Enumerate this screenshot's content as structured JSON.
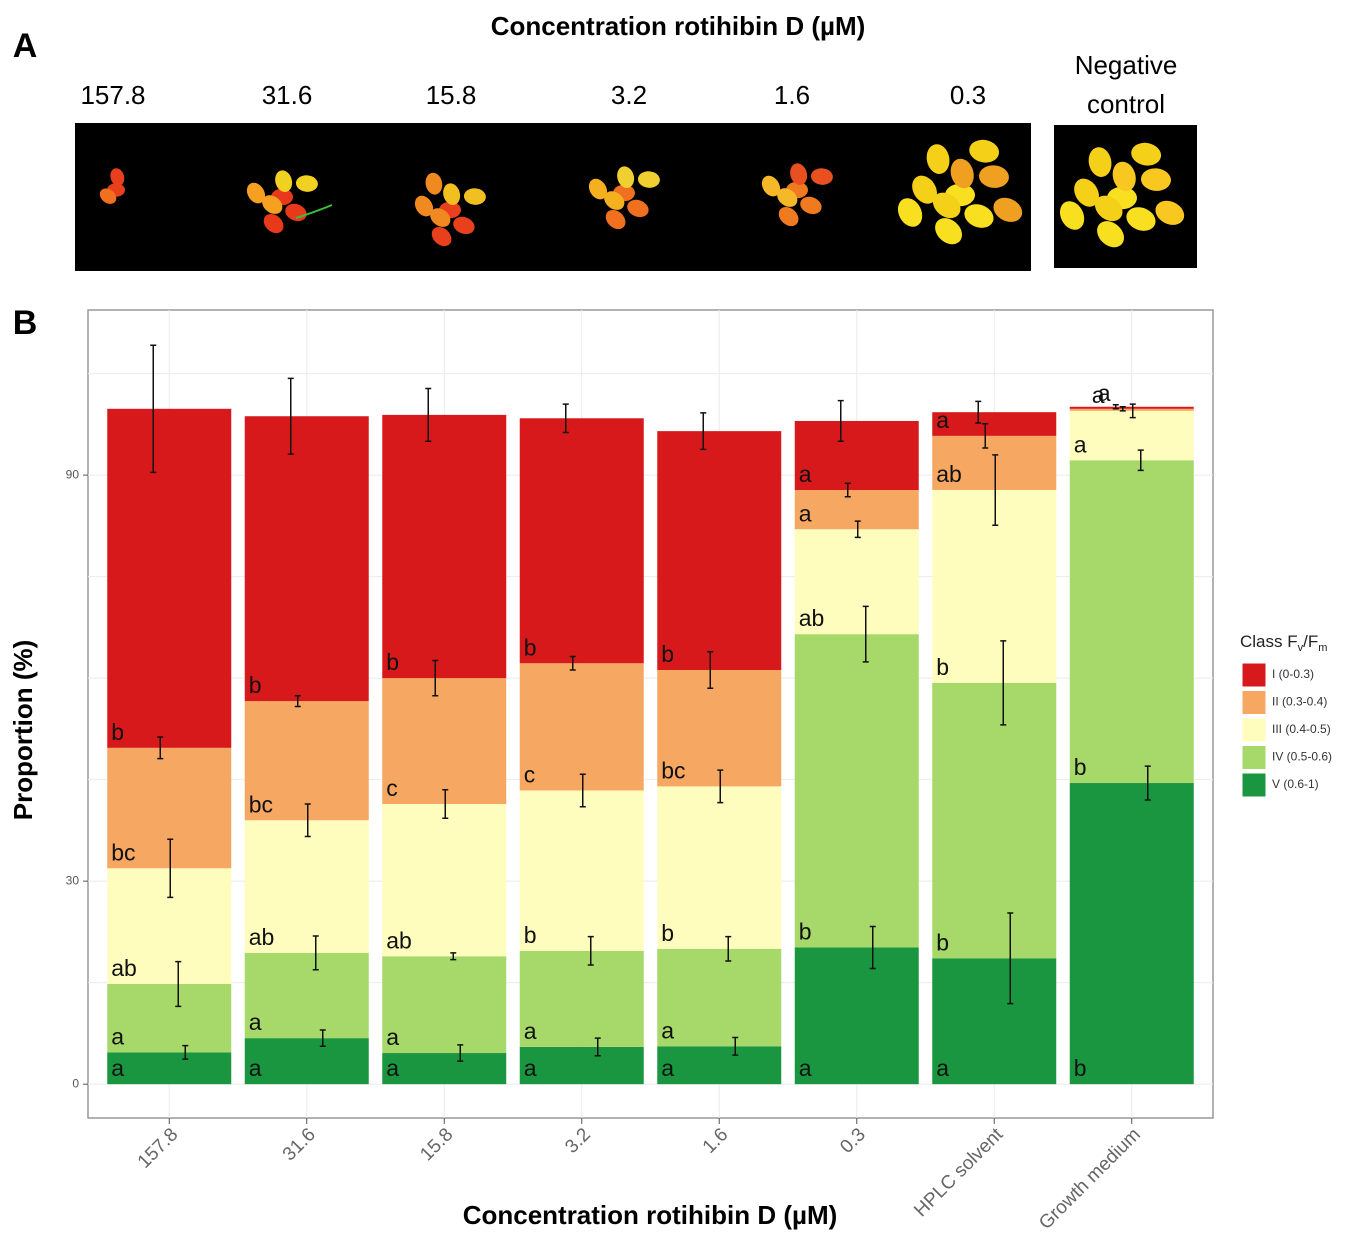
{
  "panel_labels": [
    "A",
    "B"
  ],
  "panel_a": {
    "title": "Concentration rotihibin D (µM)",
    "concentrations": [
      "157.8",
      "31.6",
      "15.8",
      "3.2",
      "1.6",
      "0.3"
    ],
    "negative_control": [
      "Negative",
      "control"
    ]
  },
  "chart_data": {
    "type": "stacked_bar",
    "x_label": "Concentration rotihibin D (µM)",
    "y_label": "Proportion (%)",
    "categories": [
      "157.8",
      "31.6",
      "15.8",
      "3.2",
      "1.6",
      "0.3",
      "HPLC solvent",
      "Growth medium"
    ],
    "ylim": [
      -5,
      114.4
    ],
    "yticks": [
      0,
      30,
      90
    ],
    "y_gridlines": [
      0,
      15,
      30,
      45,
      60,
      75,
      90,
      105
    ],
    "grid": true,
    "legend_title": [
      "Class F",
      "v",
      "/F",
      "m"
    ],
    "legend_position": "right",
    "series": [
      {
        "name": "I (0-0.3)",
        "color": "#d7191c",
        "values": [
          50.1,
          42.1,
          38.9,
          36.2,
          35.3,
          10.2,
          3.5,
          0.3
        ],
        "errors": [
          9.4,
          5.6,
          3.9,
          2.1,
          2.7,
          3.0,
          1.6,
          0.3
        ],
        "letters": [
          "b",
          "b",
          "b",
          "b",
          "b",
          "a",
          "a",
          "a"
        ]
      },
      {
        "name": "II (0.3-0.4)",
        "color": "#f6a862",
        "values": [
          17.8,
          17.6,
          18.6,
          18.8,
          17.2,
          5.8,
          8.0,
          0.3
        ],
        "errors": [
          1.6,
          0.8,
          2.6,
          1.0,
          2.7,
          1.0,
          1.8,
          0.3
        ],
        "letters": [
          "bc",
          "bc",
          "c",
          "c",
          "bc",
          "a",
          "ab",
          "a"
        ]
      },
      {
        "name": "III (0.4-0.5)",
        "color": "#fefdbe",
        "values": [
          17.1,
          19.6,
          22.5,
          23.7,
          24.0,
          15.5,
          28.5,
          7.3
        ],
        "errors": [
          4.3,
          2.4,
          2.1,
          2.4,
          2.4,
          1.2,
          5.2,
          1.0
        ],
        "letters": [
          "ab",
          "ab",
          "ab",
          "b",
          "b",
          "ab",
          "b",
          "a"
        ]
      },
      {
        "name": "IV (0.5-0.6)",
        "color": "#a6d86a",
        "values": [
          10.1,
          12.6,
          14.3,
          14.2,
          14.4,
          46.3,
          40.7,
          47.7
        ],
        "errors": [
          3.3,
          2.5,
          0.5,
          2.1,
          1.8,
          4.1,
          6.2,
          1.5
        ],
        "letters": [
          "a",
          "a",
          "a",
          "a",
          "a",
          "b",
          "b",
          "b"
        ]
      },
      {
        "name": "V (0.6-1)",
        "color": "#1a9641",
        "values": [
          4.7,
          6.8,
          4.6,
          5.5,
          5.6,
          20.2,
          18.6,
          44.5
        ],
        "errors": [
          1.0,
          1.2,
          1.2,
          1.3,
          1.3,
          3.1,
          6.7,
          2.5
        ],
        "letters": [
          "a",
          "a",
          "a",
          "a",
          "a",
          "a",
          "a",
          "b"
        ]
      }
    ]
  }
}
